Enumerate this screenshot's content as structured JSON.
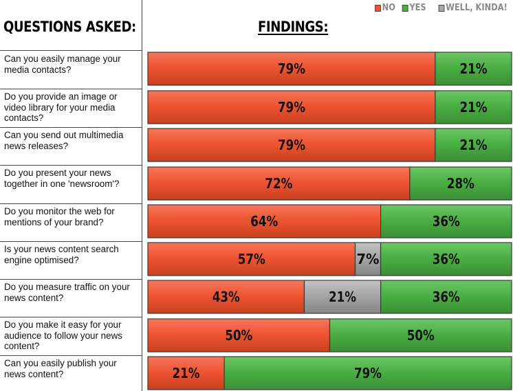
{
  "headings": {
    "questions": "QUESTIONS ASKED:",
    "findings": "FINDINGS:"
  },
  "legend": [
    {
      "label": "NO",
      "color": "#ee5533"
    },
    {
      "label": "YES",
      "color": "#4caf45"
    },
    {
      "label": "WELL, KINDA!",
      "color": "#a6a6a6"
    }
  ],
  "colors": {
    "no": "#ee5533",
    "yes": "#4caf45",
    "kinda": "#a6a6a6"
  },
  "chart_data": {
    "type": "bar",
    "orientation": "horizontal-stacked-100",
    "categories": [
      "Can you easily manage your media contacts?",
      "Do you provide an image or video library for your media contacts?",
      "Can you send out multimedia news releases?",
      "Do you present your news together in one 'newsroom'?",
      "Do you monitor the web for mentions of your brand?",
      "Is your news content search engine optimised?",
      "Do you measure traffic on your news content?",
      "Do you make it easy for your audience to follow your news content?",
      "Can you easily publish your news content?"
    ],
    "series": [
      {
        "name": "NO",
        "values": [
          79,
          79,
          79,
          72,
          64,
          57,
          43,
          50,
          21
        ],
        "labels": [
          "79%",
          "79%",
          "79%",
          "72%",
          "64%",
          "57%",
          "43%",
          "50%",
          "21%"
        ]
      },
      {
        "name": "WELL, KINDA!",
        "values": [
          0,
          0,
          0,
          0,
          0,
          7,
          21,
          0,
          0
        ],
        "labels": [
          "",
          "",
          "",
          "",
          "",
          "7%",
          "21%",
          "",
          ""
        ]
      },
      {
        "name": "YES",
        "values": [
          21,
          21,
          21,
          28,
          36,
          36,
          36,
          50,
          79
        ],
        "labels": [
          "21%",
          "21%",
          "21%",
          "28%",
          "36%",
          "36%",
          "36%",
          "50%",
          "79%"
        ]
      }
    ],
    "xlim": [
      0,
      100
    ],
    "title": "FINDINGS:",
    "legend_position": "top-right",
    "grid": false
  }
}
